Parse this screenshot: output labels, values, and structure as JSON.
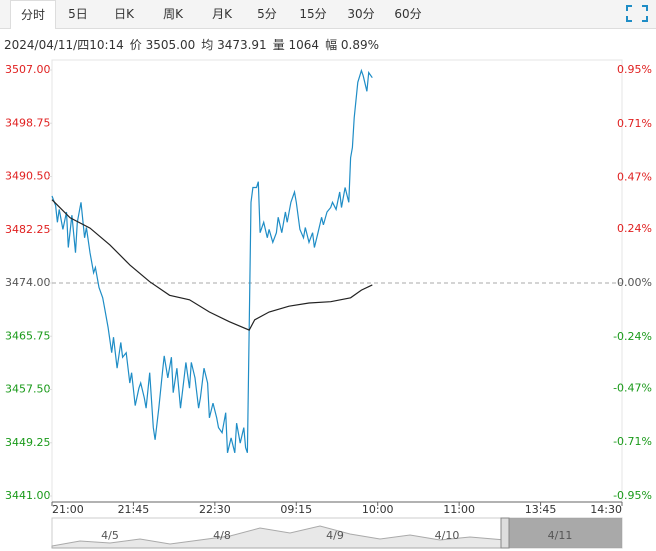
{
  "tabs": [
    "分时",
    "5日",
    "日K",
    "周K",
    "月K",
    "5分",
    "15分",
    "30分",
    "60分"
  ],
  "info": [
    "2024/04/11/四10:14",
    "价 3505.00",
    "均 3473.91",
    "量 1064",
    "幅 0.89%"
  ],
  "navigator": {
    "labels": [
      "4/5",
      "4/8",
      "4/9",
      "4/10",
      "4/11"
    ]
  },
  "chart_data": {
    "type": "line",
    "ylim": [
      3441,
      3507
    ],
    "yticks": [
      {
        "value": 3507,
        "label": "3507.00"
      },
      {
        "value": 3498.75,
        "label": "3498.75"
      },
      {
        "value": 3490.5,
        "label": "3490.50"
      },
      {
        "value": 3482.25,
        "label": "3482.25"
      },
      {
        "value": 3474,
        "label": "3474.00"
      },
      {
        "value": 3465.75,
        "label": "3465.75"
      },
      {
        "value": 3457.5,
        "label": "3457.50"
      },
      {
        "value": 3449.25,
        "label": "3449.25"
      },
      {
        "value": 3441,
        "label": "3441.00"
      }
    ],
    "y2lim": [
      -0.95,
      0.95
    ],
    "y2ticks": [
      {
        "value": 0.95,
        "label": "0.95%"
      },
      {
        "value": 0.71,
        "label": "0.71%"
      },
      {
        "value": 0.47,
        "label": "0.47%"
      },
      {
        "value": 0.24,
        "label": "0.24%"
      },
      {
        "value": 0,
        "label": "0.00%"
      },
      {
        "value": -0.24,
        "label": "-0.24%"
      },
      {
        "value": -0.47,
        "label": "-0.47%"
      },
      {
        "value": -0.71,
        "label": "-0.71%"
      },
      {
        "value": -0.95,
        "label": "-0.95%"
      }
    ],
    "xlim": [
      0,
      315
    ],
    "xticks": [
      {
        "value": 0,
        "label": "21:00"
      },
      {
        "value": 45,
        "label": "21:45"
      },
      {
        "value": 90,
        "label": "22:30"
      },
      {
        "value": 135,
        "label": "09:15"
      },
      {
        "value": 180,
        "label": "10:00"
      },
      {
        "value": 225,
        "label": "11:00"
      },
      {
        "value": 270,
        "label": "13:45"
      },
      {
        "value": 315,
        "label": "14:30"
      }
    ],
    "up_color": "#e02020",
    "down_color": "#1a9a1a",
    "flat_color": "#555555",
    "series": [
      {
        "color": "#1f8dc6",
        "x": [
          0,
          2,
          3,
          4,
          6,
          8,
          9,
          11,
          13,
          14,
          16,
          18,
          19,
          21,
          23,
          24,
          26,
          28,
          29,
          31,
          33,
          34,
          36,
          38,
          39,
          41,
          43,
          44,
          46,
          48,
          49,
          51,
          52,
          54,
          56,
          57,
          59,
          61,
          62,
          64,
          66,
          67,
          69,
          71,
          73,
          74,
          76,
          77,
          79,
          81,
          82,
          84,
          86,
          87,
          89,
          91,
          92,
          94,
          96,
          97,
          99,
          101,
          102,
          104,
          106,
          107,
          108,
          110,
          111,
          113,
          114,
          115,
          117,
          119,
          120,
          122,
          124,
          125,
          127,
          129,
          130,
          132,
          134,
          135,
          137,
          139,
          140,
          142,
          144,
          145,
          147,
          149,
          150,
          152,
          154,
          155,
          157,
          159,
          160,
          162,
          164,
          165,
          166,
          167,
          169,
          171,
          172,
          174,
          175,
          177
        ],
        "values": [
          3487.5,
          3486,
          3483.4,
          3485.4,
          3482.3,
          3485,
          3479.5,
          3484.5,
          3478.7,
          3483.4,
          3486.5,
          3481,
          3482.6,
          3478.7,
          3475.6,
          3476.4,
          3473.3,
          3471.7,
          3470.2,
          3467.1,
          3463.2,
          3465.6,
          3460.8,
          3464.8,
          3462.5,
          3463.2,
          3458.5,
          3460.1,
          3455,
          3457.7,
          3458.5,
          3456.2,
          3454.6,
          3460.1,
          3451.6,
          3449.7,
          3454.6,
          3460.1,
          3462.7,
          3459.3,
          3462.5,
          3457,
          3460.8,
          3454.6,
          3459.3,
          3461.7,
          3457.7,
          3461.7,
          3459.3,
          3454.6,
          3456.2,
          3460.8,
          3458.5,
          3453.1,
          3455.4,
          3453.1,
          3451.6,
          3450.8,
          3453.9,
          3447.7,
          3450,
          3447.7,
          3452.3,
          3449.2,
          3451.6,
          3448.5,
          3447.7,
          3486.5,
          3488.8,
          3488.8,
          3489.7,
          3481.8,
          3483.4,
          3481,
          3482.3,
          3480.3,
          3481.8,
          3484.2,
          3481.8,
          3485,
          3483.4,
          3486.5,
          3488.1,
          3486.5,
          3482.3,
          3481,
          3482.6,
          3480.3,
          3481.8,
          3479.5,
          3481.8,
          3484.2,
          3483,
          3485,
          3485.7,
          3486.5,
          3485.4,
          3488.1,
          3485.7,
          3488.8,
          3486.5,
          3493.4,
          3495,
          3499.6,
          3505.1,
          3506.9,
          3506.1,
          3503.7,
          3506.6,
          3505.8
        ]
      },
      {
        "color": "#222222",
        "x": [
          0,
          10,
          21,
          32,
          43,
          54,
          65,
          76,
          87,
          98,
          109,
          112,
          120,
          131,
          142,
          154,
          165,
          171,
          177
        ],
        "values": [
          3486.9,
          3484.1,
          3482.5,
          3479.9,
          3476.8,
          3474.2,
          3472.1,
          3471.4,
          3469.5,
          3468,
          3466.7,
          3468.3,
          3469.5,
          3470.4,
          3470.9,
          3471.1,
          3471.7,
          3472.9,
          3473.7
        ]
      }
    ]
  }
}
